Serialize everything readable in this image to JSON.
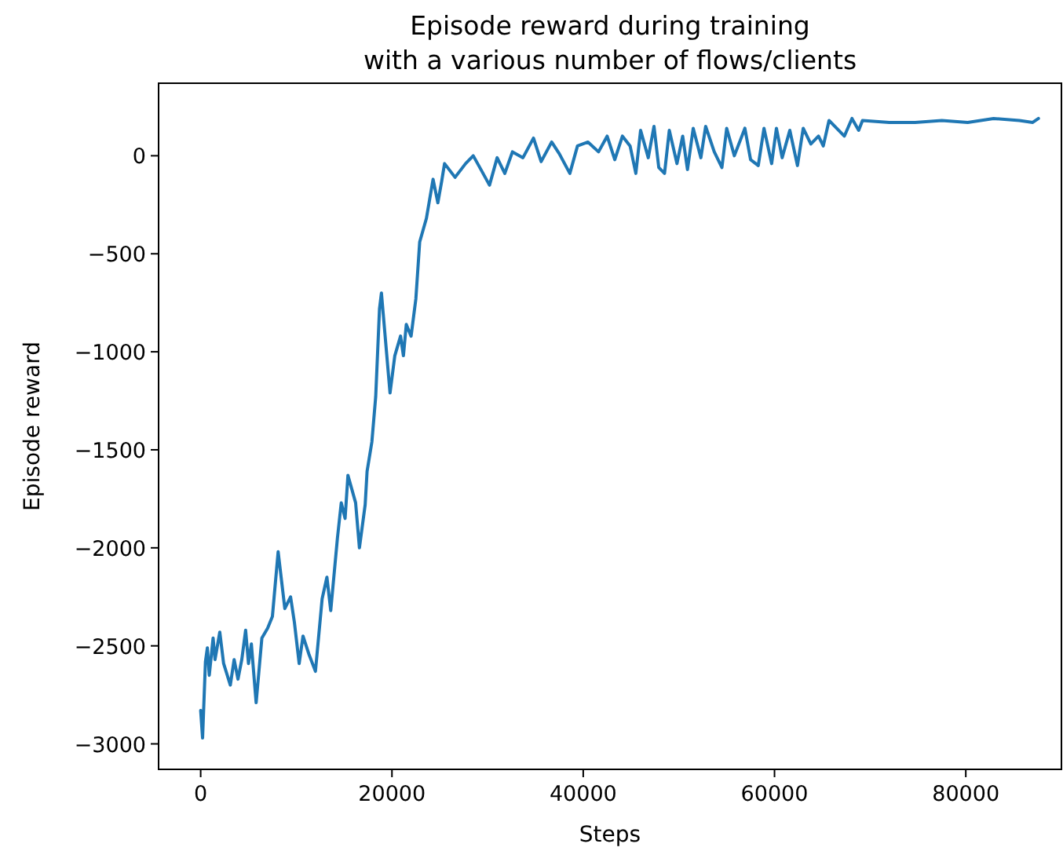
{
  "chart_data": {
    "type": "line",
    "title": "Episode reward during training\nwith a various number of flows/clients",
    "xlabel": "Steps",
    "ylabel": "Episode reward",
    "xlim": [
      -4400,
      90000
    ],
    "xticks": [
      0,
      20000,
      40000,
      60000,
      80000
    ],
    "ylim": [
      -3130,
      370
    ],
    "yticks": [
      {
        "value": -3000,
        "label": "−3000"
      },
      {
        "value": -2500,
        "label": "−2500"
      },
      {
        "value": -2000,
        "label": "−2000"
      },
      {
        "value": -1500,
        "label": "−1500"
      },
      {
        "value": -1000,
        "label": "−1000"
      },
      {
        "value": -500,
        "label": "−500"
      },
      0
    ],
    "grid": false,
    "marker": "none",
    "line_style": "solid",
    "series": [
      {
        "color": "#1f77b4",
        "x": [
          0,
          200,
          500,
          700,
          900,
          1300,
          1500,
          2000,
          2400,
          3100,
          3500,
          3900,
          4300,
          4700,
          5000,
          5300,
          5800,
          6400,
          7000,
          7500,
          8100,
          8800,
          9400,
          9800,
          10300,
          10700,
          11300,
          12000,
          12700,
          13200,
          13600,
          14300,
          14700,
          15100,
          15400,
          16200,
          16600,
          17200,
          17400,
          17900,
          18300,
          18700,
          18900,
          19800,
          20300,
          20900,
          21200,
          21500,
          22000,
          22500,
          22900,
          23600,
          24300,
          24800,
          25200,
          25500,
          26600,
          27700,
          28500,
          29300,
          30200,
          31000,
          31800,
          32600,
          33700,
          34800,
          35600,
          36700,
          37500,
          38600,
          39400,
          40500,
          41600,
          42500,
          43300,
          44100,
          44900,
          45500,
          46000,
          46800,
          47400,
          47900,
          48500,
          49000,
          49800,
          50400,
          50900,
          51500,
          52300,
          52800,
          53700,
          54500,
          55000,
          55800,
          56900,
          57500,
          58300,
          58900,
          59700,
          60200,
          60800,
          61600,
          62400,
          63000,
          63800,
          64600,
          65100,
          65700,
          66500,
          67300,
          68100,
          68800,
          69200,
          72000,
          74700,
          77500,
          80200,
          82900,
          85600,
          87000,
          87600
        ],
        "values": [
          -2830,
          -2970,
          -2580,
          -2510,
          -2650,
          -2460,
          -2570,
          -2430,
          -2590,
          -2700,
          -2570,
          -2670,
          -2570,
          -2420,
          -2590,
          -2490,
          -2790,
          -2460,
          -2410,
          -2350,
          -2020,
          -2310,
          -2250,
          -2380,
          -2590,
          -2450,
          -2540,
          -2630,
          -2260,
          -2150,
          -2320,
          -1950,
          -1770,
          -1850,
          -1630,
          -1770,
          -2000,
          -1780,
          -1610,
          -1460,
          -1230,
          -780,
          -700,
          -1210,
          -1020,
          -920,
          -1020,
          -860,
          -920,
          -730,
          -440,
          -320,
          -120,
          -240,
          -130,
          -40,
          -110,
          -40,
          0,
          -70,
          -150,
          -10,
          -90,
          20,
          -10,
          90,
          -30,
          70,
          10,
          -90,
          50,
          70,
          20,
          100,
          -20,
          100,
          50,
          -90,
          130,
          -10,
          150,
          -60,
          -90,
          130,
          -40,
          100,
          -70,
          140,
          -10,
          150,
          20,
          -60,
          140,
          0,
          140,
          -20,
          -50,
          140,
          -40,
          140,
          -10,
          130,
          -50,
          140,
          60,
          100,
          50,
          180,
          140,
          100,
          190,
          130,
          180,
          170,
          170,
          180,
          170,
          190,
          180,
          170,
          190
        ]
      }
    ]
  }
}
